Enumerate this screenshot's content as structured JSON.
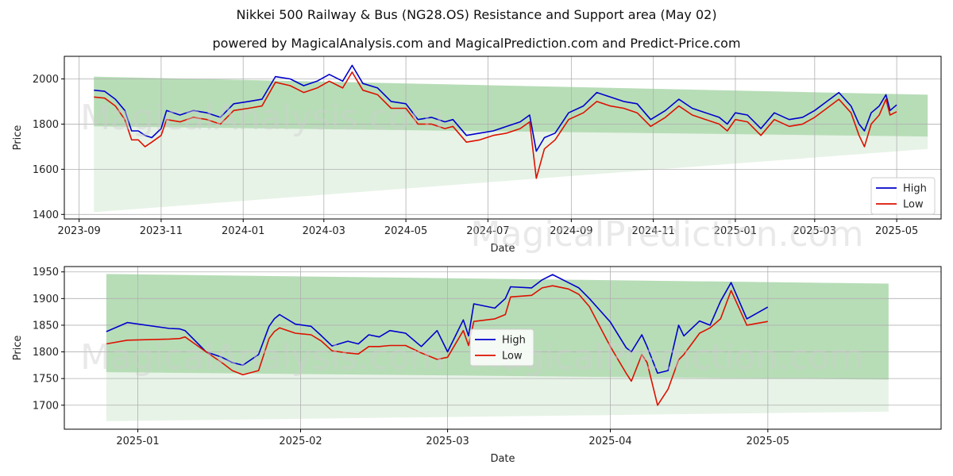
{
  "title": "Nikkei 500 Railway & Bus (NG28.OS) Resistance and Support area (May 02)",
  "subtitle": "powered by MagicalAnalysis.com and MagicalPrediction.com and Predict-Price.com",
  "watermarks": [
    "MagicalAnalysis.com",
    "MagicalPrediction.com"
  ],
  "colors": {
    "high": "#0000cc",
    "low": "#dd1100",
    "band_dark": "#8fca8f",
    "band_light": "#cfe8cf",
    "grid": "#b0b0b0"
  },
  "chart_data": [
    {
      "type": "line",
      "xlabel": "Date",
      "ylabel": "Price",
      "xlim": [
        "2023-08-21",
        "2025-06-03"
      ],
      "ylim": [
        1380,
        2100
      ],
      "x_ticks": [
        "2023-09",
        "2023-11",
        "2024-01",
        "2024-03",
        "2024-05",
        "2024-07",
        "2024-09",
        "2024-11",
        "2025-01",
        "2025-03",
        "2025-05"
      ],
      "x_tick_dates": [
        "2023-09-01",
        "2023-11-01",
        "2024-01-01",
        "2024-03-01",
        "2024-05-01",
        "2024-07-01",
        "2024-09-01",
        "2024-11-01",
        "2025-01-01",
        "2025-03-01",
        "2025-05-01"
      ],
      "y_ticks": [
        1400,
        1600,
        1800,
        2000
      ],
      "grid": true,
      "legend_position": "lower-right",
      "bands": [
        {
          "x": [
            "2023-09-12",
            "2025-05-24"
          ],
          "upper": [
            2010,
            1930
          ],
          "lower": [
            1790,
            1745
          ]
        },
        {
          "x": [
            "2023-09-12",
            "2025-05-24"
          ],
          "upper": [
            2010,
            1930
          ],
          "lower": [
            1410,
            1690
          ]
        }
      ],
      "series": [
        {
          "name": "High",
          "x": [
            "2023-09-12",
            "2023-09-20",
            "2023-09-28",
            "2023-10-05",
            "2023-10-10",
            "2023-10-15",
            "2023-10-20",
            "2023-10-25",
            "2023-11-01",
            "2023-11-05",
            "2023-11-15",
            "2023-11-25",
            "2023-12-05",
            "2023-12-15",
            "2023-12-25",
            "2024-01-05",
            "2024-01-15",
            "2024-01-25",
            "2024-02-05",
            "2024-02-15",
            "2024-02-25",
            "2024-03-05",
            "2024-03-15",
            "2024-03-22",
            "2024-03-30",
            "2024-04-10",
            "2024-04-20",
            "2024-05-01",
            "2024-05-10",
            "2024-05-20",
            "2024-05-30",
            "2024-06-05",
            "2024-06-15",
            "2024-06-25",
            "2024-07-05",
            "2024-07-15",
            "2024-07-25",
            "2024-08-01",
            "2024-08-06",
            "2024-08-12",
            "2024-08-20",
            "2024-08-30",
            "2024-09-10",
            "2024-09-20",
            "2024-09-30",
            "2024-10-10",
            "2024-10-20",
            "2024-10-30",
            "2024-11-10",
            "2024-11-20",
            "2024-11-30",
            "2024-12-10",
            "2024-12-20",
            "2024-12-26",
            "2025-01-01",
            "2025-01-10",
            "2025-01-20",
            "2025-01-30",
            "2025-02-10",
            "2025-02-20",
            "2025-03-01",
            "2025-03-10",
            "2025-03-19",
            "2025-03-28",
            "2025-04-03",
            "2025-04-07",
            "2025-04-12",
            "2025-04-18",
            "2025-04-23",
            "2025-04-26",
            "2025-05-01"
          ],
          "values": [
            1950,
            1945,
            1910,
            1860,
            1770,
            1770,
            1750,
            1740,
            1780,
            1860,
            1840,
            1860,
            1850,
            1830,
            1890,
            1900,
            1910,
            2010,
            2000,
            1970,
            1990,
            2020,
            1990,
            2060,
            1980,
            1960,
            1900,
            1890,
            1820,
            1830,
            1810,
            1820,
            1750,
            1760,
            1770,
            1790,
            1810,
            1840,
            1680,
            1740,
            1760,
            1850,
            1880,
            1940,
            1920,
            1900,
            1890,
            1820,
            1860,
            1910,
            1870,
            1850,
            1830,
            1800,
            1850,
            1840,
            1780,
            1850,
            1820,
            1830,
            1860,
            1900,
            1940,
            1880,
            1800,
            1770,
            1850,
            1880,
            1930,
            1860,
            1885
          ]
        },
        {
          "name": "Low",
          "x": [
            "2023-09-12",
            "2023-09-20",
            "2023-09-28",
            "2023-10-05",
            "2023-10-10",
            "2023-10-15",
            "2023-10-20",
            "2023-10-25",
            "2023-11-01",
            "2023-11-05",
            "2023-11-15",
            "2023-11-25",
            "2023-12-05",
            "2023-12-15",
            "2023-12-25",
            "2024-01-05",
            "2024-01-15",
            "2024-01-25",
            "2024-02-05",
            "2024-02-15",
            "2024-02-25",
            "2024-03-05",
            "2024-03-15",
            "2024-03-22",
            "2024-03-30",
            "2024-04-10",
            "2024-04-20",
            "2024-05-01",
            "2024-05-10",
            "2024-05-20",
            "2024-05-30",
            "2024-06-05",
            "2024-06-15",
            "2024-06-25",
            "2024-07-05",
            "2024-07-15",
            "2024-07-25",
            "2024-08-01",
            "2024-08-06",
            "2024-08-12",
            "2024-08-20",
            "2024-08-30",
            "2024-09-10",
            "2024-09-20",
            "2024-09-30",
            "2024-10-10",
            "2024-10-20",
            "2024-10-30",
            "2024-11-10",
            "2024-11-20",
            "2024-11-30",
            "2024-12-10",
            "2024-12-20",
            "2024-12-26",
            "2025-01-01",
            "2025-01-10",
            "2025-01-20",
            "2025-01-30",
            "2025-02-10",
            "2025-02-20",
            "2025-03-01",
            "2025-03-10",
            "2025-03-19",
            "2025-03-28",
            "2025-04-03",
            "2025-04-07",
            "2025-04-12",
            "2025-04-18",
            "2025-04-23",
            "2025-04-26",
            "2025-05-01"
          ],
          "values": [
            1920,
            1915,
            1880,
            1820,
            1730,
            1730,
            1700,
            1720,
            1750,
            1820,
            1810,
            1830,
            1820,
            1800,
            1860,
            1870,
            1880,
            1985,
            1970,
            1940,
            1960,
            1990,
            1960,
            2030,
            1950,
            1930,
            1870,
            1870,
            1800,
            1800,
            1780,
            1790,
            1720,
            1730,
            1750,
            1760,
            1780,
            1810,
            1560,
            1690,
            1730,
            1820,
            1850,
            1900,
            1880,
            1870,
            1850,
            1790,
            1830,
            1880,
            1840,
            1820,
            1800,
            1770,
            1820,
            1810,
            1750,
            1820,
            1790,
            1800,
            1830,
            1870,
            1910,
            1850,
            1750,
            1700,
            1800,
            1840,
            1910,
            1840,
            1855
          ]
        }
      ]
    },
    {
      "type": "line",
      "xlabel": "Date",
      "ylabel": "Price",
      "xlim": [
        "2024-12-18",
        "2025-06-03"
      ],
      "ylim": [
        1655,
        1960
      ],
      "x_ticks": [
        "2025-01",
        "2025-02",
        "2025-03",
        "2025-04",
        "2025-05"
      ],
      "x_tick_dates": [
        "2025-01-01",
        "2025-02-01",
        "2025-03-01",
        "2025-04-01",
        "2025-05-01"
      ],
      "y_ticks": [
        1700,
        1750,
        1800,
        1850,
        1900,
        1950
      ],
      "grid": true,
      "legend_position": "center-left",
      "bands": [
        {
          "x": [
            "2024-12-26",
            "2025-05-24"
          ],
          "upper": [
            1946,
            1928
          ],
          "lower": [
            1762,
            1748
          ]
        },
        {
          "x": [
            "2024-12-26",
            "2025-05-24"
          ],
          "upper": [
            1946,
            1928
          ],
          "lower": [
            1670,
            1688
          ]
        }
      ],
      "series": [
        {
          "name": "High",
          "x": [
            "2024-12-26",
            "2024-12-30",
            "2025-01-07",
            "2025-01-09",
            "2025-01-10",
            "2025-01-14",
            "2025-01-17",
            "2025-01-19",
            "2025-01-21",
            "2025-01-24",
            "2025-01-26",
            "2025-01-27",
            "2025-01-28",
            "2025-01-31",
            "2025-02-03",
            "2025-02-05",
            "2025-02-07",
            "2025-02-10",
            "2025-02-12",
            "2025-02-14",
            "2025-02-16",
            "2025-02-18",
            "2025-02-21",
            "2025-02-24",
            "2025-02-27",
            "2025-03-01",
            "2025-03-04",
            "2025-03-05",
            "2025-03-06",
            "2025-03-10",
            "2025-03-12",
            "2025-03-13",
            "2025-03-17",
            "2025-03-19",
            "2025-03-21",
            "2025-03-24",
            "2025-03-26",
            "2025-03-28",
            "2025-04-01",
            "2025-04-04",
            "2025-04-05",
            "2025-04-07",
            "2025-04-08",
            "2025-04-10",
            "2025-04-12",
            "2025-04-14",
            "2025-04-15",
            "2025-04-18",
            "2025-04-20",
            "2025-04-22",
            "2025-04-24",
            "2025-04-27",
            "2025-05-01"
          ],
          "values": [
            1838,
            1855,
            1844,
            1843,
            1840,
            1800,
            1790,
            1780,
            1775,
            1795,
            1848,
            1862,
            1870,
            1852,
            1848,
            1830,
            1811,
            1820,
            1815,
            1832,
            1828,
            1840,
            1835,
            1810,
            1840,
            1800,
            1860,
            1830,
            1890,
            1882,
            1900,
            1922,
            1920,
            1935,
            1945,
            1930,
            1920,
            1900,
            1856,
            1808,
            1800,
            1832,
            1810,
            1760,
            1765,
            1850,
            1830,
            1858,
            1850,
            1895,
            1930,
            1862,
            1884
          ]
        },
        {
          "name": "Low",
          "x": [
            "2024-12-26",
            "2024-12-30",
            "2025-01-07",
            "2025-01-09",
            "2025-01-10",
            "2025-01-14",
            "2025-01-17",
            "2025-01-19",
            "2025-01-21",
            "2025-01-24",
            "2025-01-26",
            "2025-01-27",
            "2025-01-28",
            "2025-01-31",
            "2025-02-03",
            "2025-02-05",
            "2025-02-07",
            "2025-02-10",
            "2025-02-12",
            "2025-02-14",
            "2025-02-16",
            "2025-02-18",
            "2025-02-21",
            "2025-02-24",
            "2025-02-27",
            "2025-03-01",
            "2025-03-04",
            "2025-03-05",
            "2025-03-06",
            "2025-03-10",
            "2025-03-12",
            "2025-03-13",
            "2025-03-17",
            "2025-03-19",
            "2025-03-21",
            "2025-03-24",
            "2025-03-26",
            "2025-03-28",
            "2025-04-01",
            "2025-04-04",
            "2025-04-05",
            "2025-04-07",
            "2025-04-08",
            "2025-04-10",
            "2025-04-12",
            "2025-04-14",
            "2025-04-15",
            "2025-04-18",
            "2025-04-20",
            "2025-04-22",
            "2025-04-24",
            "2025-04-27",
            "2025-05-01"
          ],
          "values": [
            1815,
            1822,
            1824,
            1825,
            1828,
            1800,
            1780,
            1765,
            1757,
            1765,
            1825,
            1838,
            1845,
            1835,
            1832,
            1820,
            1802,
            1798,
            1796,
            1810,
            1810,
            1812,
            1812,
            1798,
            1786,
            1790,
            1840,
            1812,
            1857,
            1862,
            1870,
            1903,
            1906,
            1920,
            1924,
            1918,
            1908,
            1885,
            1810,
            1760,
            1745,
            1795,
            1780,
            1700,
            1730,
            1785,
            1795,
            1835,
            1845,
            1862,
            1915,
            1850,
            1857
          ]
        }
      ]
    }
  ]
}
